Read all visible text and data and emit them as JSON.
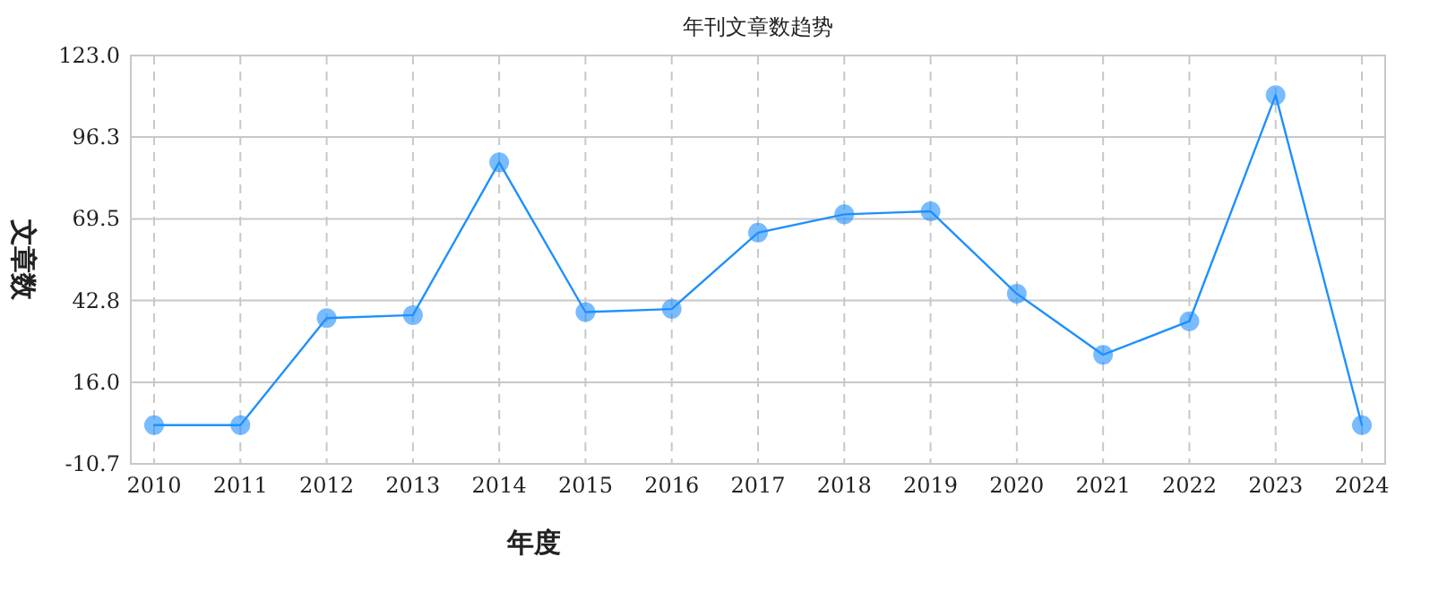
{
  "chart_data": {
    "type": "line",
    "title": "年刊文章数趋势",
    "xlabel": "年度",
    "ylabel": "文章数",
    "categories": [
      "2010",
      "2011",
      "2012",
      "2013",
      "2014",
      "2015",
      "2016",
      "2017",
      "2018",
      "2019",
      "2020",
      "2021",
      "2022",
      "2023",
      "2024"
    ],
    "series": [
      {
        "color": "#1e90ff",
        "values": [
          2,
          2,
          37,
          38,
          88,
          39,
          40,
          65,
          71,
          72,
          45,
          25,
          36,
          110,
          2
        ]
      }
    ],
    "ylim": [
      -10.7,
      123.0
    ],
    "yticks": [
      {
        "value": -10.7,
        "label": "-10.7"
      },
      {
        "value": 16,
        "label": "16.0"
      },
      {
        "value": 42.8,
        "label": "42.8"
      },
      {
        "value": 69.5,
        "label": "69.5"
      },
      {
        "value": 96.3,
        "label": "96.3"
      },
      {
        "value": 123,
        "label": "123.0"
      }
    ],
    "grid": true,
    "marker": "circle",
    "line_style": "solid"
  }
}
